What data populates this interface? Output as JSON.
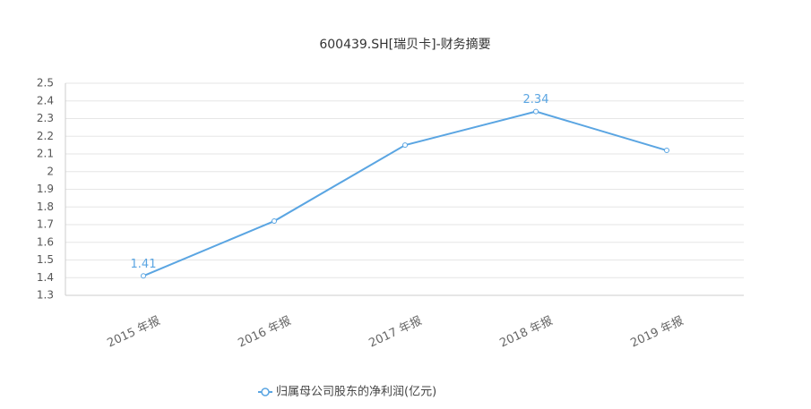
{
  "chart_data": {
    "type": "line",
    "title": "600439.SH[瑞贝卡]-财务摘要",
    "categories": [
      "2015 年报",
      "2016 年报",
      "2017 年报",
      "2018 年报",
      "2019 年报"
    ],
    "series": [
      {
        "name": "归属母公司股东的净利润(亿元)",
        "color": "#5aa5e2",
        "values": [
          1.41,
          1.72,
          2.15,
          2.34,
          2.12
        ],
        "value_labels": [
          "1.41",
          null,
          null,
          "2.34",
          null
        ]
      }
    ],
    "ylim": [
      1.3,
      2.5
    ],
    "yticks": [
      1.3,
      1.4,
      1.5,
      1.6,
      1.7,
      1.8,
      1.9,
      2,
      2.1,
      2.2,
      2.3,
      2.4,
      2.5
    ],
    "grid": true,
    "legend": "bottom"
  }
}
